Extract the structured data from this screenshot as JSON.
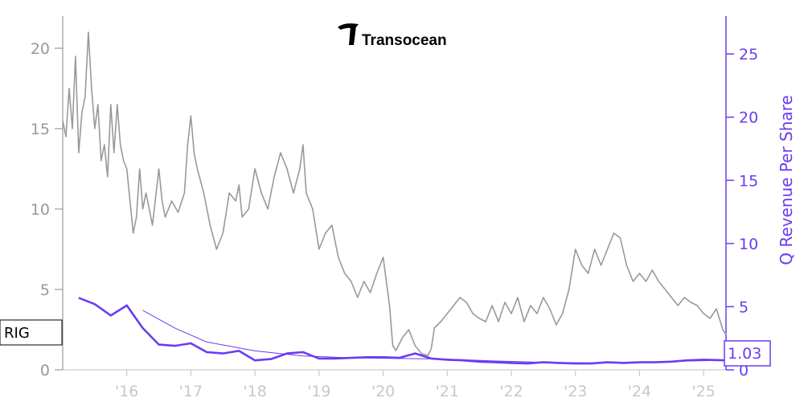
{
  "logo": {
    "text": "Transocean"
  },
  "chart_data": {
    "type": "line",
    "ticker": "RIG",
    "right_axis_label": "Q Revenue Per Share",
    "current_value_label": "1.03",
    "colors": {
      "price": "#999999",
      "revenue": "#6a3cf0",
      "trend": "#6a3cf0"
    },
    "x_ticks": [
      "'16",
      "'17",
      "'18",
      "'19",
      "'20",
      "'21",
      "'22",
      "'23",
      "'24",
      "'25"
    ],
    "x_range": [
      2015.0,
      2025.35
    ],
    "left_axis": {
      "ticks": [
        "0",
        "5",
        "10",
        "15",
        "20"
      ],
      "range": [
        0,
        22
      ]
    },
    "right_axis": {
      "ticks": [
        "0",
        "5",
        "10",
        "15",
        "20",
        "25"
      ],
      "range": [
        0,
        28
      ]
    },
    "series": [
      {
        "name": "RIG",
        "axis": "left",
        "x": [
          2015.0,
          2015.05,
          2015.1,
          2015.15,
          2015.2,
          2015.25,
          2015.3,
          2015.35,
          2015.4,
          2015.45,
          2015.5,
          2015.55,
          2015.6,
          2015.65,
          2015.7,
          2015.75,
          2015.8,
          2015.85,
          2015.9,
          2015.95,
          2016.0,
          2016.05,
          2016.1,
          2016.15,
          2016.2,
          2016.25,
          2016.3,
          2016.4,
          2016.5,
          2016.55,
          2016.6,
          2016.7,
          2016.8,
          2016.9,
          2016.95,
          2017.0,
          2017.05,
          2017.1,
          2017.2,
          2017.3,
          2017.4,
          2017.5,
          2017.6,
          2017.7,
          2017.75,
          2017.8,
          2017.9,
          2018.0,
          2018.1,
          2018.2,
          2018.3,
          2018.4,
          2018.5,
          2018.6,
          2018.7,
          2018.75,
          2018.8,
          2018.9,
          2019.0,
          2019.1,
          2019.2,
          2019.3,
          2019.4,
          2019.5,
          2019.6,
          2019.7,
          2019.8,
          2019.9,
          2020.0,
          2020.05,
          2020.1,
          2020.15,
          2020.2,
          2020.3,
          2020.4,
          2020.5,
          2020.6,
          2020.7,
          2020.75,
          2020.8,
          2020.9,
          2021.0,
          2021.1,
          2021.2,
          2021.3,
          2021.4,
          2021.5,
          2021.6,
          2021.7,
          2021.8,
          2021.9,
          2022.0,
          2022.1,
          2022.2,
          2022.3,
          2022.4,
          2022.5,
          2022.6,
          2022.7,
          2022.8,
          2022.9,
          2023.0,
          2023.1,
          2023.2,
          2023.3,
          2023.4,
          2023.5,
          2023.6,
          2023.7,
          2023.8,
          2023.9,
          2024.0,
          2024.1,
          2024.2,
          2024.3,
          2024.4,
          2024.5,
          2024.6,
          2024.7,
          2024.8,
          2024.9,
          2025.0,
          2025.1,
          2025.2,
          2025.3,
          2025.35
        ],
        "y": [
          15.5,
          14.5,
          17.5,
          15.0,
          19.5,
          13.5,
          16.0,
          17.0,
          21.0,
          17.5,
          15.0,
          16.5,
          13.0,
          14.0,
          12.0,
          16.5,
          13.5,
          16.5,
          14.0,
          13.0,
          12.5,
          10.5,
          8.5,
          9.5,
          12.5,
          10.0,
          11.0,
          9.0,
          12.5,
          10.5,
          9.5,
          10.5,
          9.8,
          11.0,
          14.0,
          15.8,
          13.5,
          12.5,
          11.0,
          9.0,
          7.5,
          8.5,
          11.0,
          10.5,
          11.5,
          9.5,
          10.0,
          12.5,
          11.0,
          10.0,
          12.0,
          13.5,
          12.5,
          11.0,
          12.5,
          14.0,
          11.0,
          10.0,
          7.5,
          8.5,
          9.0,
          7.0,
          6.0,
          5.5,
          4.5,
          5.5,
          4.8,
          6.0,
          7.0,
          5.5,
          4.0,
          1.5,
          1.2,
          2.0,
          2.5,
          1.5,
          1.0,
          0.9,
          1.3,
          2.6,
          3.0,
          3.5,
          4.0,
          4.5,
          4.2,
          3.5,
          3.2,
          3.0,
          4.0,
          3.0,
          4.2,
          3.5,
          4.5,
          3.0,
          4.0,
          3.5,
          4.5,
          3.8,
          2.8,
          3.5,
          5.0,
          7.5,
          6.5,
          6.0,
          7.5,
          6.5,
          7.5,
          8.5,
          8.2,
          6.5,
          5.5,
          6.0,
          5.5,
          6.2,
          5.5,
          5.0,
          4.5,
          4.0,
          4.5,
          4.2,
          4.0,
          3.5,
          3.2,
          3.8,
          2.5,
          2.2
        ]
      },
      {
        "name": "Q Revenue Per Share",
        "axis": "right",
        "x": [
          2015.25,
          2015.5,
          2015.75,
          2016.0,
          2016.25,
          2016.5,
          2016.75,
          2017.0,
          2017.25,
          2017.5,
          2017.75,
          2018.0,
          2018.25,
          2018.5,
          2018.75,
          2019.0,
          2019.25,
          2019.5,
          2019.75,
          2020.0,
          2020.25,
          2020.5,
          2020.75,
          2021.0,
          2021.25,
          2021.5,
          2021.75,
          2022.0,
          2022.25,
          2022.5,
          2022.75,
          2023.0,
          2023.25,
          2023.5,
          2023.75,
          2024.0,
          2024.25,
          2024.5,
          2024.75,
          2025.0,
          2025.35
        ],
        "y": [
          5.7,
          5.2,
          4.3,
          5.1,
          3.3,
          2.0,
          1.9,
          2.1,
          1.4,
          1.3,
          1.5,
          0.75,
          0.85,
          1.3,
          1.4,
          0.9,
          0.9,
          0.95,
          1.0,
          1.0,
          0.95,
          1.3,
          0.9,
          0.8,
          0.75,
          0.65,
          0.6,
          0.55,
          0.5,
          0.6,
          0.55,
          0.5,
          0.5,
          0.6,
          0.55,
          0.6,
          0.6,
          0.65,
          0.75,
          0.8,
          0.75
        ]
      },
      {
        "name": "trend",
        "axis": "right",
        "x": [
          2016.25,
          2016.75,
          2017.25,
          2018.0,
          2018.75,
          2019.5,
          2020.25,
          2021.0,
          2021.75,
          2022.5,
          2023.25,
          2024.0,
          2024.75,
          2025.35
        ],
        "y": [
          4.7,
          3.3,
          2.2,
          1.5,
          1.1,
          0.95,
          0.9,
          0.85,
          0.7,
          0.6,
          0.55,
          0.6,
          0.7,
          0.75
        ]
      }
    ]
  }
}
